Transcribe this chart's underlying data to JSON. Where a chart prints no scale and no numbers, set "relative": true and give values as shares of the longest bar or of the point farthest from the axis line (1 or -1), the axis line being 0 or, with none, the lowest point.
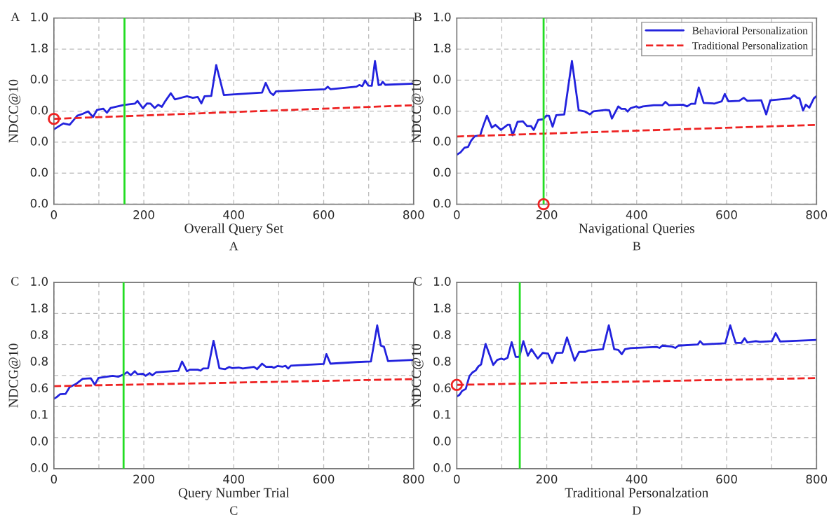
{
  "chart_data": [
    {
      "type": "line",
      "relative": true,
      "title": "A",
      "xlabel": "Overall Query Set",
      "ylabel": "NDCC@10",
      "annotations": [
        "0.0",
        "0.0",
        "0.0",
        "0.0",
        "0.0",
        "1.8",
        "1.0",
        "A"
      ],
      "xlim": [
        0,
        800
      ],
      "xticks": [
        0,
        {
          "value": 100,
          "label": null
        },
        200,
        {
          "value": 300,
          "label": null
        },
        400,
        {
          "value": 500,
          "label": null
        },
        600,
        {
          "value": 700,
          "label": null
        },
        800
      ],
      "grid": true,
      "ref_lines": [
        {
          "axis": "x",
          "value": 157,
          "color": "#22dd22"
        }
      ],
      "series": [
        {
          "color": "#2222dd",
          "line_style": "solid",
          "x": [
            0,
            21,
            35,
            52,
            64,
            76,
            87,
            96,
            110,
            118,
            126,
            155,
            180,
            186,
            198,
            207,
            215,
            224,
            232,
            240,
            248,
            260,
            269,
            296,
            309,
            320,
            328,
            335,
            350,
            361,
            378,
            463,
            471,
            481,
            488,
            494,
            603,
            609,
            615,
            673,
            679,
            686,
            692,
            699,
            707,
            714,
            722,
            727,
            731,
            737,
            800
          ],
          "values": [
            0.523,
            0.564,
            0.555,
            0.618,
            0.631,
            0.648,
            0.609,
            0.659,
            0.667,
            0.639,
            0.672,
            0.693,
            0.702,
            0.721,
            0.67,
            0.704,
            0.702,
            0.672,
            0.695,
            0.68,
            0.721,
            0.775,
            0.732,
            0.754,
            0.743,
            0.749,
            0.704,
            0.754,
            0.756,
            0.972,
            0.762,
            0.78,
            0.847,
            0.78,
            0.762,
            0.788,
            0.803,
            0.821,
            0.803,
            0.821,
            0.832,
            0.825,
            0.864,
            0.829,
            0.827,
            1,
            0.832,
            0.834,
            0.855,
            0.834,
            0.842
          ]
        },
        {
          "color": "#ee2222",
          "line_style": "dashed",
          "x": [
            0,
            800
          ],
          "values": [
            0.596,
            0.691
          ]
        },
        {
          "type": "scatter",
          "color": "#ee2222",
          "marker": "circle",
          "x": [
            0
          ],
          "values": [
            0.596
          ]
        }
      ]
    },
    {
      "type": "line",
      "relative": true,
      "title": "B",
      "xlabel": "Navigational Queries",
      "ylabel": "NDCC@10",
      "annotations": [
        "0.0",
        "0.0",
        "0.0",
        "0.0",
        "0.0",
        "1.8",
        "1.0",
        "B"
      ],
      "xlim": [
        0,
        800
      ],
      "xticks": [
        0,
        {
          "value": 100,
          "label": null
        },
        200,
        {
          "value": 300,
          "label": null
        },
        400,
        {
          "value": 500,
          "label": null
        },
        600,
        {
          "value": 700,
          "label": null
        },
        800
      ],
      "grid": true,
      "legend": "top right",
      "ref_lines": [
        {
          "axis": "x",
          "value": 193,
          "color": "#22dd22"
        }
      ],
      "series": [
        {
          "name": "Behavioral Personalization",
          "color": "#2222dd",
          "line_style": "solid",
          "x": [
            0,
            8,
            17,
            25,
            32,
            40,
            52,
            58,
            67,
            78,
            86,
            98,
            113,
            118,
            124,
            135,
            147,
            156,
            165,
            171,
            181,
            192,
            199,
            205,
            213,
            221,
            239,
            256,
            271,
            285,
            296,
            304,
            331,
            339,
            345,
            359,
            366,
            374,
            380,
            386,
            399,
            405,
            414,
            438,
            457,
            464,
            472,
            503,
            512,
            521,
            530,
            538,
            549,
            573,
            589,
            596,
            604,
            628,
            638,
            646,
            677,
            688,
            697,
            727,
            742,
            750,
            757,
            762,
            770,
            776,
            784,
            794,
            800
          ],
          "values": [
            0.346,
            0.361,
            0.394,
            0.4,
            0.444,
            0.475,
            0.481,
            0.541,
            0.618,
            0.535,
            0.554,
            0.519,
            0.554,
            0.554,
            0.481,
            0.575,
            0.579,
            0.546,
            0.546,
            0.519,
            0.589,
            0.593,
            0.618,
            0.618,
            0.541,
            0.622,
            0.627,
            1,
            0.656,
            0.647,
            0.627,
            0.649,
            0.658,
            0.656,
            0.598,
            0.683,
            0.666,
            0.666,
            0.647,
            0.67,
            0.683,
            0.674,
            0.683,
            0.691,
            0.691,
            0.714,
            0.691,
            0.695,
            0.683,
            0.701,
            0.701,
            0.815,
            0.707,
            0.703,
            0.718,
            0.77,
            0.718,
            0.722,
            0.743,
            0.722,
            0.726,
            0.627,
            0.726,
            0.734,
            0.739,
            0.761,
            0.743,
            0.739,
            0.654,
            0.695,
            0.674,
            0.739,
            0.755
          ]
        },
        {
          "name": "Traditional Personalization",
          "color": "#ee2222",
          "line_style": "dashed",
          "x": [
            0,
            800
          ],
          "values": [
            0.473,
            0.554
          ]
        },
        {
          "type": "scatter",
          "color": "#ee2222",
          "marker": "circle",
          "x": [
            193
          ],
          "values": [
            0
          ]
        }
      ]
    },
    {
      "type": "line",
      "relative": true,
      "title": "C",
      "xlabel": "Query Number Trial",
      "ylabel": "NDCG@10",
      "annotations": [
        "0.0",
        "0.0",
        "0.1",
        "0.6",
        "0.8",
        "0.8",
        "1.8",
        "1.0",
        "C"
      ],
      "xlim": [
        0,
        800
      ],
      "xticks": [
        0,
        {
          "value": 100,
          "label": null
        },
        200,
        {
          "value": 300,
          "label": null
        },
        400,
        {
          "value": 500,
          "label": null
        },
        600,
        {
          "value": 700,
          "label": null
        },
        800
      ],
      "grid": true,
      "ref_lines": [
        {
          "axis": "x",
          "value": 155,
          "color": "#22dd22"
        }
      ],
      "series": [
        {
          "color": "#2222dd",
          "line_style": "solid",
          "x": [
            0,
            6,
            14,
            26,
            35,
            49,
            64,
            82,
            91,
            99,
            131,
            143,
            155,
            163,
            171,
            180,
            186,
            198,
            204,
            213,
            219,
            227,
            277,
            285,
            296,
            302,
            320,
            326,
            332,
            343,
            355,
            368,
            381,
            390,
            396,
            411,
            420,
            445,
            452,
            463,
            472,
            484,
            489,
            497,
            509,
            515,
            521,
            527,
            600,
            606,
            615,
            673,
            705,
            719,
            727,
            734,
            743,
            800
          ],
          "values": [
            0.488,
            0.499,
            0.52,
            0.522,
            0.569,
            0.591,
            0.627,
            0.631,
            0.586,
            0.633,
            0.648,
            0.642,
            0.657,
            0.674,
            0.652,
            0.68,
            0.659,
            0.663,
            0.648,
            0.667,
            0.652,
            0.672,
            0.684,
            0.748,
            0.68,
            0.691,
            0.691,
            0.684,
            0.699,
            0.701,
            0.893,
            0.701,
            0.695,
            0.71,
            0.702,
            0.706,
            0.699,
            0.71,
            0.695,
            0.733,
            0.71,
            0.712,
            0.704,
            0.716,
            0.712,
            0.718,
            0.699,
            0.719,
            0.731,
            0.8,
            0.733,
            0.744,
            0.748,
            1,
            0.859,
            0.851,
            0.751,
            0.759
          ]
        },
        {
          "color": "#ee2222",
          "line_style": "dashed",
          "x": [
            0,
            800
          ],
          "values": [
            0.576,
            0.625
          ]
        }
      ]
    },
    {
      "type": "line",
      "relative": true,
      "title": "C",
      "xlabel": "Traditional Personalzation",
      "ylabel": "NDCC@10",
      "annotations": [
        "0.0",
        "0.0",
        "0.1",
        "0.6",
        "0.8",
        "0.8",
        "1.8",
        "1.0",
        "D"
      ],
      "xlim": [
        0,
        800
      ],
      "xticks": [
        0,
        {
          "value": 100,
          "label": null
        },
        200,
        {
          "value": 300,
          "label": null
        },
        400,
        {
          "value": 500,
          "label": null
        },
        600,
        {
          "value": 700,
          "label": null
        },
        800
      ],
      "grid": true,
      "ref_lines": [
        {
          "axis": "x",
          "value": 140,
          "color": "#22dd22"
        }
      ],
      "series": [
        {
          "color": "#2222dd",
          "line_style": "solid",
          "x": [
            0,
            6,
            12,
            20,
            28,
            35,
            42,
            48,
            54,
            64,
            81,
            90,
            99,
            105,
            113,
            122,
            131,
            139,
            148,
            158,
            166,
            180,
            191,
            203,
            212,
            221,
            235,
            245,
            262,
            272,
            286,
            292,
            325,
            338,
            350,
            359,
            367,
            374,
            386,
            444,
            451,
            457,
            478,
            486,
            493,
            536,
            541,
            548,
            597,
            608,
            620,
            633,
            640,
            646,
            665,
            674,
            701,
            709,
            719,
            800
          ],
          "values": [
            0.504,
            0.515,
            0.543,
            0.557,
            0.646,
            0.672,
            0.686,
            0.714,
            0.728,
            0.871,
            0.724,
            0.759,
            0.768,
            0.761,
            0.775,
            0.883,
            0.78,
            0.78,
            0.89,
            0.789,
            0.834,
            0.768,
            0.808,
            0.803,
            0.738,
            0.808,
            0.81,
            0.916,
            0.754,
            0.815,
            0.815,
            0.824,
            0.834,
            1,
            0.834,
            0.829,
            0.799,
            0.834,
            0.841,
            0.85,
            0.843,
            0.859,
            0.852,
            0.843,
            0.859,
            0.867,
            0.89,
            0.867,
            0.876,
            1,
            0.878,
            0.878,
            0.911,
            0.881,
            0.89,
            0.885,
            0.89,
            0.946,
            0.888,
            0.899
          ]
        },
        {
          "color": "#ee2222",
          "line_style": "dashed",
          "x": [
            0,
            800
          ],
          "values": [
            0.585,
            0.632
          ]
        },
        {
          "type": "scatter",
          "color": "#ee2222",
          "marker": "circle",
          "x": [
            0
          ],
          "values": [
            0.585
          ]
        }
      ]
    }
  ]
}
